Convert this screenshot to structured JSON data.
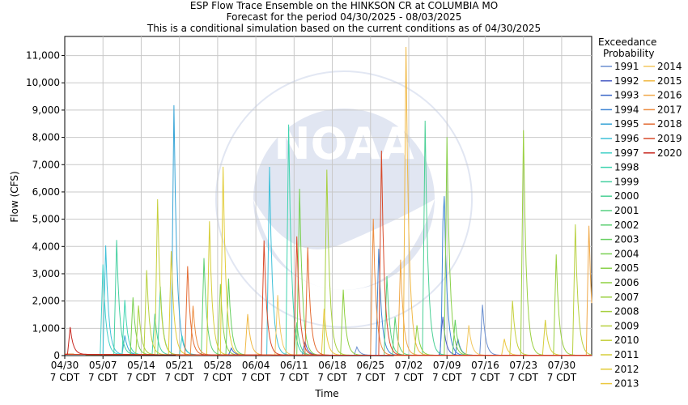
{
  "chart_data": {
    "type": "line",
    "title": "ESP Flow Trace Ensemble on the HINKSON CR at COLUMBIA MO",
    "subtitle": "Forecast for the period 04/30/2025 - 08/03/2025",
    "subtitle2": "This is a conditional simulation based on the current conditions as of 04/30/2025",
    "xlabel": "Time",
    "ylabel": "Flow (CFS)",
    "ylim": [
      0,
      11700
    ],
    "xlim_days": [
      0,
      96.5
    ],
    "grid": true,
    "x_ticks": [
      {
        "line1": "04/30",
        "line2": "7 CDT",
        "day": 0
      },
      {
        "line1": "05/07",
        "line2": "7 CDT",
        "day": 7
      },
      {
        "line1": "05/14",
        "line2": "7 CDT",
        "day": 14
      },
      {
        "line1": "05/21",
        "line2": "7 CDT",
        "day": 21
      },
      {
        "line1": "05/28",
        "line2": "7 CDT",
        "day": 28
      },
      {
        "line1": "06/04",
        "line2": "7 CDT",
        "day": 35
      },
      {
        "line1": "06/11",
        "line2": "7 CDT",
        "day": 42
      },
      {
        "line1": "06/18",
        "line2": "7 CDT",
        "day": 49
      },
      {
        "line1": "06/25",
        "line2": "7 CDT",
        "day": 56
      },
      {
        "line1": "07/02",
        "line2": "7 CDT",
        "day": 63
      },
      {
        "line1": "07/09",
        "line2": "7 CDT",
        "day": 70
      },
      {
        "line1": "07/16",
        "line2": "7 CDT",
        "day": 77
      },
      {
        "line1": "07/23",
        "line2": "7 CDT",
        "day": 84
      },
      {
        "line1": "07/30",
        "line2": "7 CDT",
        "day": 91
      }
    ],
    "y_ticks": [
      {
        "label": "0",
        "value": 0
      },
      {
        "label": "1,000",
        "value": 1000
      },
      {
        "label": "2,000",
        "value": 2000
      },
      {
        "label": "3,000",
        "value": 3000
      },
      {
        "label": "4,000",
        "value": 4000
      },
      {
        "label": "5,000",
        "value": 5000
      },
      {
        "label": "6,000",
        "value": 6000
      },
      {
        "label": "7,000",
        "value": 7000
      },
      {
        "label": "8,000",
        "value": 8000
      },
      {
        "label": "9,000",
        "value": 9000
      },
      {
        "label": "10,000",
        "value": 10000
      },
      {
        "label": "11,000",
        "value": 11000
      }
    ],
    "legend_title_1": "Exceedance",
    "legend_title_2": "Probability",
    "legend_position": "right",
    "series": [
      {
        "name": "1991",
        "color": "#6a8fd0",
        "peaks": [
          [
            76.5,
            1850
          ],
          [
            53.5,
            300
          ]
        ]
      },
      {
        "name": "1992",
        "color": "#4a5cc4",
        "peaks": [
          [
            69.2,
            1550
          ],
          [
            44.0,
            500
          ]
        ]
      },
      {
        "name": "1993",
        "color": "#3a66c8",
        "peaks": [
          [
            72.0,
            600
          ],
          [
            30.5,
            250
          ]
        ]
      },
      {
        "name": "1994",
        "color": "#3f86d4",
        "peaks": [
          [
            69.4,
            7000
          ],
          [
            57.5,
            3900
          ]
        ]
      },
      {
        "name": "1995",
        "color": "#37a4d6",
        "peaks": [
          [
            20.0,
            9150
          ],
          [
            11.0,
            700
          ]
        ]
      },
      {
        "name": "1996",
        "color": "#3fc0d8",
        "peaks": [
          [
            37.5,
            6900
          ],
          [
            7.5,
            4000
          ]
        ]
      },
      {
        "name": "1997",
        "color": "#40d0c8",
        "peaks": [
          [
            7.0,
            3300
          ],
          [
            21.5,
            700
          ]
        ]
      },
      {
        "name": "1998",
        "color": "#3fd4b0",
        "peaks": [
          [
            41.0,
            8450
          ],
          [
            11.0,
            2000
          ]
        ]
      },
      {
        "name": "1999",
        "color": "#45d0a0",
        "peaks": [
          [
            9.5,
            4200
          ],
          [
            16.5,
            1500
          ]
        ]
      },
      {
        "name": "2000",
        "color": "#4ad095",
        "peaks": [
          [
            66.0,
            8600
          ],
          [
            17.5,
            2500
          ]
        ]
      },
      {
        "name": "2001",
        "color": "#55d080",
        "peaks": [
          [
            59.0,
            2900
          ],
          [
            42.5,
            1200
          ]
        ]
      },
      {
        "name": "2002",
        "color": "#5ccf72",
        "peaks": [
          [
            25.5,
            3550
          ],
          [
            60.5,
            1400
          ]
        ]
      },
      {
        "name": "2003",
        "color": "#66d060",
        "peaks": [
          [
            30.0,
            2800
          ],
          [
            71.5,
            1300
          ]
        ]
      },
      {
        "name": "2004",
        "color": "#78d050",
        "peaks": [
          [
            43.0,
            6100
          ],
          [
            12.5,
            2100
          ]
        ]
      },
      {
        "name": "2005",
        "color": "#88d048",
        "peaks": [
          [
            70.0,
            8000
          ],
          [
            28.5,
            2600
          ]
        ]
      },
      {
        "name": "2006",
        "color": "#8fd040",
        "peaks": [
          [
            51.0,
            2400
          ],
          [
            64.5,
            1100
          ]
        ]
      },
      {
        "name": "2007",
        "color": "#9ad040",
        "peaks": [
          [
            84.0,
            8250
          ],
          [
            90.0,
            3700
          ]
        ]
      },
      {
        "name": "2008",
        "color": "#a8d040",
        "peaks": [
          [
            48.0,
            6800
          ],
          [
            13.5,
            1800
          ]
        ]
      },
      {
        "name": "2009",
        "color": "#b8d03e",
        "peaks": [
          [
            93.5,
            4800
          ],
          [
            15.0,
            3100
          ]
        ]
      },
      {
        "name": "2010",
        "color": "#c6d03c",
        "peaks": [
          [
            17.0,
            5700
          ],
          [
            82.0,
            2000
          ]
        ]
      },
      {
        "name": "2011",
        "color": "#d6ce3a",
        "peaks": [
          [
            26.5,
            4900
          ],
          [
            88.0,
            1300
          ]
        ]
      },
      {
        "name": "2012",
        "color": "#e2cc38",
        "peaks": [
          [
            29.0,
            6900
          ],
          [
            19.5,
            3800
          ]
        ]
      },
      {
        "name": "2013",
        "color": "#ecc840",
        "peaks": [
          [
            47.5,
            1700
          ],
          [
            80.5,
            600
          ]
        ]
      },
      {
        "name": "2014",
        "color": "#f2c860",
        "peaks": [
          [
            39.0,
            2200
          ],
          [
            74.0,
            1100
          ]
        ]
      },
      {
        "name": "2015",
        "color": "#f0b844",
        "peaks": [
          [
            62.5,
            11300
          ],
          [
            33.5,
            1500
          ]
        ]
      },
      {
        "name": "2016",
        "color": "#f0a848",
        "peaks": [
          [
            96.0,
            4750
          ],
          [
            61.5,
            3500
          ]
        ]
      },
      {
        "name": "2017",
        "color": "#ec8c40",
        "peaks": [
          [
            56.5,
            5000
          ],
          [
            23.5,
            1800
          ]
        ]
      },
      {
        "name": "2018",
        "color": "#e46c34",
        "peaks": [
          [
            44.5,
            3950
          ],
          [
            22.5,
            3250
          ]
        ]
      },
      {
        "name": "2019",
        "color": "#d84a2a",
        "peaks": [
          [
            58.0,
            7500
          ],
          [
            36.5,
            4200
          ],
          [
            42.5,
            4350
          ]
        ]
      },
      {
        "name": "2020",
        "color": "#c82820",
        "peaks": [
          [
            1.0,
            1000
          ]
        ]
      }
    ]
  }
}
